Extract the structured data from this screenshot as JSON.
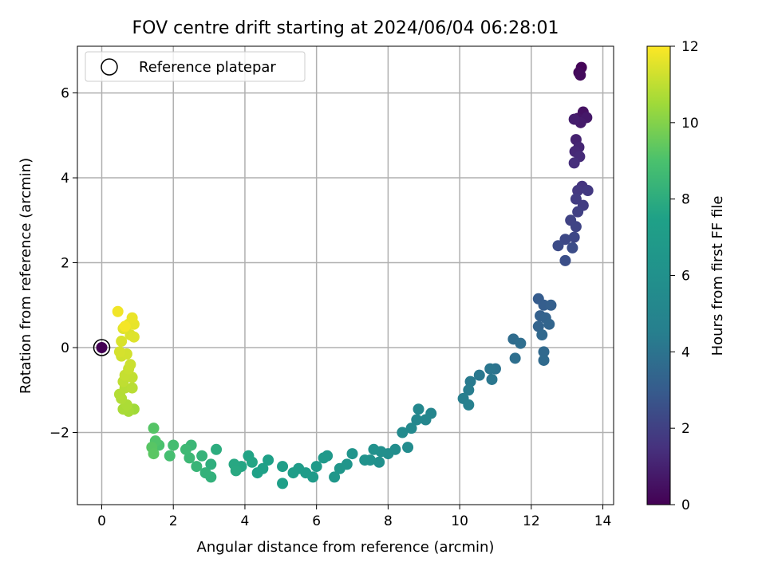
{
  "chart_data": {
    "type": "scatter",
    "title": "FOV centre drift starting at 2024/06/04 06:28:01",
    "xlabel": "Angular distance from reference (arcmin)",
    "ylabel": "Rotation from reference (arcmin)",
    "xlim": [
      -0.68,
      14.3
    ],
    "ylim": [
      -3.7,
      7.1
    ],
    "xticks": [
      0,
      2,
      4,
      6,
      8,
      10,
      12,
      14
    ],
    "yticks": [
      -2,
      0,
      2,
      4,
      6
    ],
    "xtick_labels": [
      "0",
      "2",
      "4",
      "6",
      "8",
      "10",
      "12",
      "14"
    ],
    "ytick_labels": [
      "−2",
      "0",
      "2",
      "4",
      "6"
    ],
    "grid": true,
    "legend": {
      "position": "top-left",
      "entries": [
        "Reference platepar"
      ]
    },
    "reference_point": {
      "x": 0,
      "y": 0,
      "label": "Reference platepar"
    },
    "colorbar": {
      "label": "Hours from first FF file",
      "min": 0,
      "max": 12,
      "ticks": [
        0,
        2,
        4,
        6,
        8,
        10,
        12
      ],
      "tick_labels": [
        "0",
        "2",
        "4",
        "6",
        "8",
        "10",
        "12"
      ],
      "colormap": "viridis"
    },
    "series": [
      {
        "points": [
          [
            13.4,
            6.6,
            0.1
          ],
          [
            13.33,
            6.48,
            0.2
          ],
          [
            13.37,
            6.42,
            0.3
          ],
          [
            13.45,
            5.55,
            0.5
          ],
          [
            13.3,
            5.4,
            0.6
          ],
          [
            13.55,
            5.42,
            0.7
          ],
          [
            13.38,
            5.3,
            0.8
          ],
          [
            13.2,
            5.38,
            0.9
          ],
          [
            13.25,
            4.9,
            1.0
          ],
          [
            13.33,
            4.72,
            1.1
          ],
          [
            13.22,
            4.62,
            1.2
          ],
          [
            13.35,
            4.5,
            1.3
          ],
          [
            13.2,
            4.35,
            1.4
          ],
          [
            13.42,
            3.8,
            1.6
          ],
          [
            13.3,
            3.7,
            1.7
          ],
          [
            13.58,
            3.7,
            1.75
          ],
          [
            13.25,
            3.5,
            1.85
          ],
          [
            13.45,
            3.35,
            1.9
          ],
          [
            13.3,
            3.2,
            2.0
          ],
          [
            13.1,
            3.0,
            2.1
          ],
          [
            13.25,
            2.85,
            2.15
          ],
          [
            13.2,
            2.6,
            2.25
          ],
          [
            12.95,
            2.55,
            2.3
          ],
          [
            12.75,
            2.4,
            2.4
          ],
          [
            13.15,
            2.35,
            2.45
          ],
          [
            12.95,
            2.05,
            2.5
          ],
          [
            12.2,
            1.15,
            3.0
          ],
          [
            12.35,
            1.0,
            3.1
          ],
          [
            12.55,
            1.0,
            3.15
          ],
          [
            12.25,
            0.75,
            3.2
          ],
          [
            12.4,
            0.7,
            3.3
          ],
          [
            12.2,
            0.5,
            3.35
          ],
          [
            12.5,
            0.55,
            3.4
          ],
          [
            12.3,
            0.3,
            3.5
          ],
          [
            12.35,
            -0.1,
            3.55
          ],
          [
            12.35,
            -0.3,
            3.6
          ],
          [
            11.5,
            0.2,
            3.7
          ],
          [
            11.7,
            0.1,
            3.75
          ],
          [
            11.55,
            -0.25,
            3.8
          ],
          [
            11.0,
            -0.5,
            4.0
          ],
          [
            10.85,
            -0.5,
            4.1
          ],
          [
            10.9,
            -0.75,
            4.15
          ],
          [
            10.55,
            -0.65,
            4.2
          ],
          [
            10.3,
            -0.8,
            4.3
          ],
          [
            10.25,
            -1.0,
            4.4
          ],
          [
            10.1,
            -1.2,
            4.5
          ],
          [
            10.25,
            -1.35,
            4.55
          ],
          [
            9.2,
            -1.55,
            5.0
          ],
          [
            9.05,
            -1.7,
            5.1
          ],
          [
            8.85,
            -1.45,
            5.15
          ],
          [
            8.8,
            -1.7,
            5.2
          ],
          [
            8.65,
            -1.9,
            5.3
          ],
          [
            8.4,
            -2.0,
            5.4
          ],
          [
            8.55,
            -2.35,
            5.6
          ],
          [
            8.2,
            -2.4,
            5.7
          ],
          [
            8.0,
            -2.5,
            5.75
          ],
          [
            7.8,
            -2.45,
            5.8
          ],
          [
            7.75,
            -2.7,
            5.9
          ],
          [
            7.6,
            -2.4,
            6.0
          ],
          [
            7.5,
            -2.65,
            6.05
          ],
          [
            7.35,
            -2.65,
            6.1
          ],
          [
            7.0,
            -2.5,
            6.3
          ],
          [
            6.85,
            -2.75,
            6.4
          ],
          [
            6.65,
            -2.85,
            6.5
          ],
          [
            6.5,
            -3.05,
            6.6
          ],
          [
            6.3,
            -2.55,
            6.7
          ],
          [
            6.2,
            -2.6,
            6.75
          ],
          [
            6.0,
            -2.8,
            6.8
          ],
          [
            5.9,
            -3.05,
            6.9
          ],
          [
            5.7,
            -2.95,
            7.0
          ],
          [
            5.5,
            -2.85,
            7.05
          ],
          [
            5.35,
            -2.95,
            7.1
          ],
          [
            5.05,
            -2.8,
            7.2
          ],
          [
            5.05,
            -3.2,
            7.3
          ],
          [
            4.65,
            -2.65,
            7.4
          ],
          [
            4.5,
            -2.85,
            7.45
          ],
          [
            4.35,
            -2.95,
            7.5
          ],
          [
            4.1,
            -2.55,
            7.6
          ],
          [
            4.2,
            -2.7,
            7.65
          ],
          [
            3.9,
            -2.8,
            7.7
          ],
          [
            3.7,
            -2.75,
            7.8
          ],
          [
            3.75,
            -2.9,
            7.85
          ],
          [
            3.2,
            -2.4,
            8.0
          ],
          [
            3.05,
            -2.75,
            8.1
          ],
          [
            3.05,
            -3.05,
            8.2
          ],
          [
            2.9,
            -2.95,
            8.25
          ],
          [
            2.8,
            -2.55,
            8.3
          ],
          [
            2.65,
            -2.8,
            8.4
          ],
          [
            2.5,
            -2.3,
            8.5
          ],
          [
            2.45,
            -2.6,
            8.55
          ],
          [
            2.35,
            -2.4,
            8.6
          ],
          [
            2.0,
            -2.3,
            8.8
          ],
          [
            1.9,
            -2.55,
            8.85
          ],
          [
            1.6,
            -2.3,
            9.0
          ],
          [
            1.5,
            -2.2,
            9.1
          ],
          [
            1.45,
            -1.9,
            9.2
          ],
          [
            1.4,
            -2.35,
            9.25
          ],
          [
            1.45,
            -2.5,
            9.3
          ],
          [
            0.9,
            -1.45,
            10.5
          ],
          [
            0.75,
            -1.5,
            10.6
          ],
          [
            0.6,
            -1.45,
            10.65
          ],
          [
            0.7,
            -1.35,
            10.7
          ],
          [
            0.55,
            -1.2,
            10.75
          ],
          [
            0.5,
            -1.1,
            10.8
          ],
          [
            0.65,
            -0.95,
            10.85
          ],
          [
            0.85,
            -0.95,
            10.9
          ],
          [
            0.6,
            -0.8,
            11.0
          ],
          [
            0.85,
            -0.7,
            11.05
          ],
          [
            0.65,
            -0.65,
            11.1
          ],
          [
            0.75,
            -0.5,
            11.15
          ],
          [
            0.8,
            -0.4,
            11.2
          ],
          [
            0.55,
            -0.2,
            11.25
          ],
          [
            0.7,
            -0.15,
            11.3
          ],
          [
            0.5,
            -0.1,
            11.35
          ],
          [
            0.55,
            0.15,
            11.4
          ],
          [
            0.8,
            0.3,
            11.45
          ],
          [
            0.9,
            0.25,
            11.5
          ],
          [
            0.6,
            0.45,
            11.55
          ],
          [
            0.75,
            0.55,
            11.6
          ],
          [
            0.9,
            0.55,
            11.65
          ],
          [
            0.85,
            0.7,
            11.7
          ],
          [
            0.45,
            0.85,
            11.8
          ],
          [
            0.65,
            0.5,
            11.85
          ]
        ]
      }
    ]
  }
}
